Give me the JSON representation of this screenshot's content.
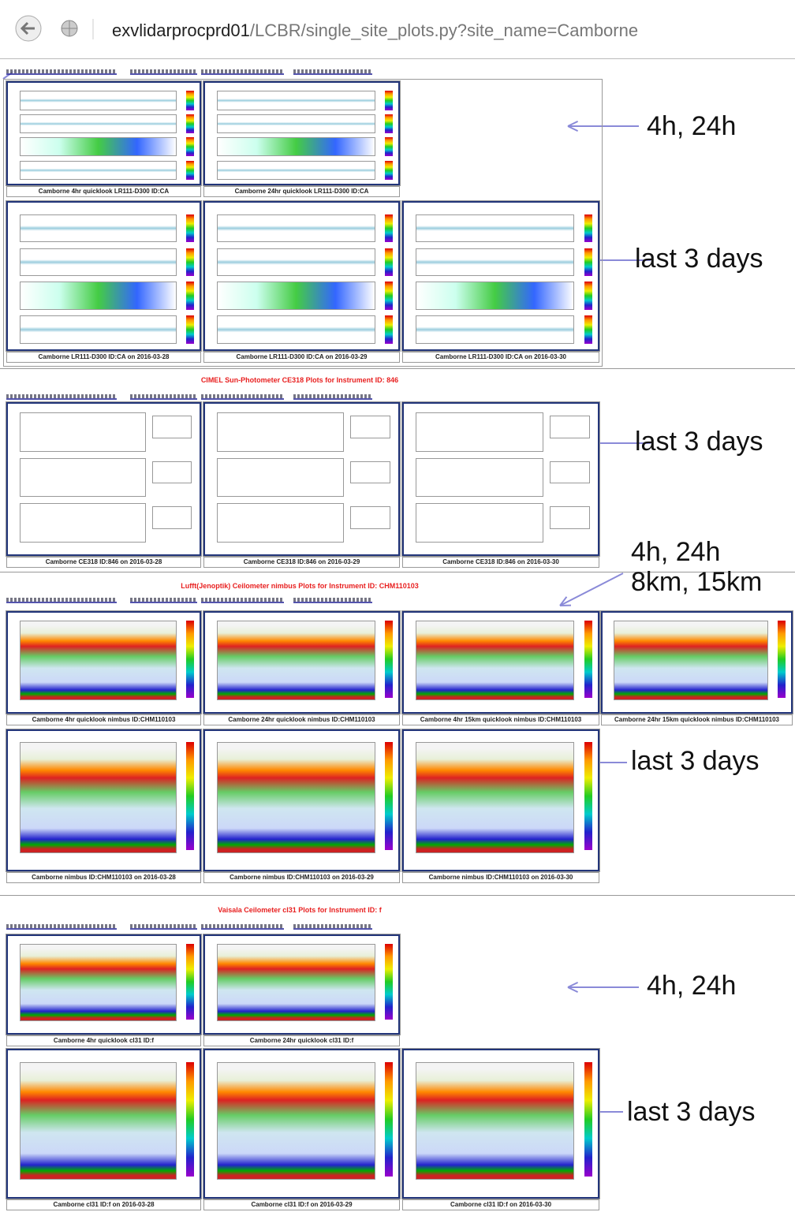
{
  "browser": {
    "url_host": "exvlidarprocprd01",
    "url_path": "/LCBR/single_site_plots.py?site_name=Camborne"
  },
  "sections": [
    {
      "rows": [
        [
          "Camborne 4hr quicklook LR111-D300 ID:CA",
          "Camborne 24hr quicklook LR111-D300 ID:CA"
        ],
        [
          "Camborne LR111-D300 ID:CA on 2016-03-28",
          "Camborne LR111-D300 ID:CA on 2016-03-29",
          "Camborne LR111-D300 ID:CA on 2016-03-30"
        ]
      ]
    },
    {
      "heading": "CIMEL Sun-Photometer CE318 Plots for Instrument ID: 846",
      "rows": [
        [
          "Camborne CE318 ID:846 on 2016-03-28",
          "Camborne CE318 ID:846 on 2016-03-29",
          "Camborne CE318 ID:846 on 2016-03-30"
        ]
      ]
    },
    {
      "heading": "Lufft(Jenoptik) Ceilometer nimbus Plots for Instrument ID: CHM110103",
      "rows": [
        [
          "Camborne 4hr quicklook nimbus ID:CHM110103",
          "Camborne 24hr quicklook nimbus ID:CHM110103",
          "Camborne 4hr 15km quicklook nimbus ID:CHM110103",
          "Camborne 24hr 15km quicklook nimbus ID:CHM110103"
        ],
        [
          "Camborne nimbus ID:CHM110103 on 2016-03-28",
          "Camborne nimbus ID:CHM110103 on 2016-03-29",
          "Camborne nimbus ID:CHM110103 on 2016-03-30"
        ]
      ]
    },
    {
      "heading": "Vaisala Ceilometer cl31 Plots for Instrument ID: f",
      "rows": [
        [
          "Camborne 4hr quicklook cl31 ID:f",
          "Camborne 24hr quicklook cl31 ID:f"
        ],
        [
          "Camborne cl31 ID:f on 2016-03-28",
          "Camborne cl31 ID:f on 2016-03-29",
          "Camborne cl31 ID:f on 2016-03-30"
        ]
      ]
    }
  ],
  "annotations": [
    {
      "lines": [
        "4h, 24h"
      ]
    },
    {
      "lines": [
        "last 3 days"
      ]
    },
    {
      "lines": [
        "last 3 days"
      ]
    },
    {
      "lines": [
        "4h, 24h",
        "8km, 15km"
      ]
    },
    {
      "lines": [
        "last 3 days"
      ]
    },
    {
      "lines": [
        "4h, 24h"
      ]
    },
    {
      "lines": [
        "last 3 days"
      ]
    }
  ]
}
